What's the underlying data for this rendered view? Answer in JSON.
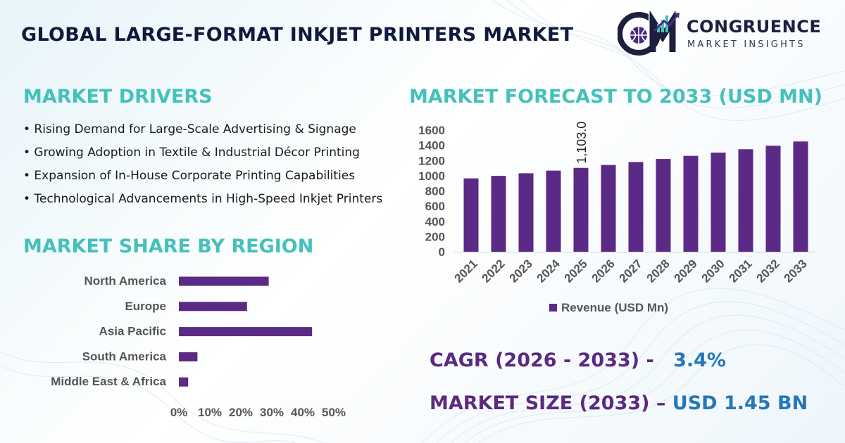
{
  "title": "GLOBAL LARGE-FORMAT INKJET PRINTERS MARKET",
  "logo": {
    "name": "CONGRUENCE",
    "tagline": "MARKET INSIGHTS",
    "monogram": "CM",
    "icon": "globe-bar-chart-logo-icon"
  },
  "drivers": {
    "heading": "MARKET DRIVERS",
    "items": [
      "• Rising Demand for Large-Scale Advertising & Signage",
      "• Growing Adoption in Textile & Industrial Décor Printing",
      "• Expansion of In-House Corporate Printing Capabilities",
      "• Technological Advancements in High-Speed Inkjet Printers"
    ]
  },
  "region": {
    "heading": "MARKET SHARE BY REGION"
  },
  "forecast": {
    "heading": "MARKET FORECAST TO 2033 (USD MN)"
  },
  "stats": {
    "cagr_label": "CAGR (2026 - 2033) -",
    "cagr_value": "3.4%",
    "size_label": "MARKET SIZE (2033) –",
    "size_value": "USD 1.45 BN"
  },
  "colors": {
    "bar": "#5b2a86",
    "heading": "#45c1bb",
    "stat": "#5a2a80",
    "value": "#2677b8",
    "title": "#111a3c"
  },
  "chart_data": [
    {
      "type": "bar",
      "orientation": "horizontal",
      "categories": [
        "North America",
        "Europe",
        "Asia Pacific",
        "South America",
        "Middle East & Africa"
      ],
      "values": [
        29,
        22,
        43,
        6,
        3
      ],
      "xticks": [
        "0%",
        "10%",
        "20%",
        "30%",
        "40%",
        "50%"
      ],
      "xlim": [
        0,
        50
      ],
      "grid": false
    },
    {
      "type": "bar",
      "categories": [
        "2021",
        "2022",
        "2023",
        "2024",
        "2025",
        "2026",
        "2027",
        "2028",
        "2029",
        "2030",
        "2031",
        "2032",
        "2033"
      ],
      "series": [
        {
          "name": "Revenue (USD Mn)",
          "values": [
            965,
            998,
            1032,
            1067,
            1103,
            1141,
            1180,
            1220,
            1261,
            1304,
            1348,
            1394,
            1450
          ]
        }
      ],
      "data_labels": [
        {
          "index": 4,
          "text": "1,103.0"
        }
      ],
      "yticks": [
        "0",
        "200",
        "400",
        "600",
        "800",
        "1000",
        "1200",
        "1400",
        "1600"
      ],
      "ylim": [
        0,
        1600
      ],
      "legend": "bottom",
      "grid": false
    }
  ]
}
